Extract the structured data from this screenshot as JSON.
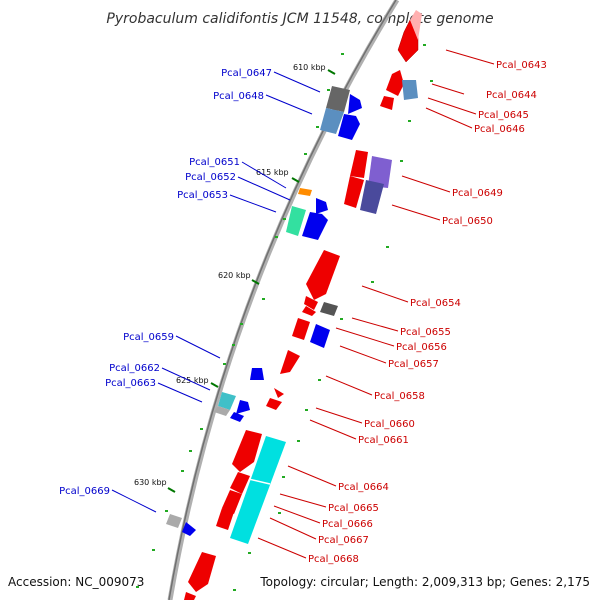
{
  "header": {
    "title": "Pyrobaculum calidifontis JCM 11548, complete genome"
  },
  "footer": {
    "accession": "Accession: NC_009073",
    "topology": "Topology: circular; Length: 2,009,313 bp; Genes: 2,175"
  },
  "colors": {
    "forward_label": "#0000cc",
    "reverse_label": "#cc0000",
    "backbone": "#888888",
    "tick": "#007700"
  },
  "kbp_ticks": [
    "610 kbp",
    "615 kbp",
    "620 kbp",
    "625 kbp",
    "630 kbp"
  ],
  "genes": {
    "forward": [
      {
        "id": "Pcal_0647",
        "color": "#555555"
      },
      {
        "id": "Pcal_0648",
        "color": "#5b8fc0"
      },
      {
        "id": "Pcal_0651",
        "color": "#ff8c00"
      },
      {
        "id": "Pcal_0652",
        "color": "#0000ee"
      },
      {
        "id": "Pcal_0653",
        "color": "#33e0a0"
      },
      {
        "id": "Pcal_0659",
        "color": "#0000ee"
      },
      {
        "id": "Pcal_0662",
        "color": "#40c0c8"
      },
      {
        "id": "Pcal_0663",
        "color": "#0000ee"
      },
      {
        "id": "Pcal_0669",
        "color": "#0000ee"
      }
    ],
    "reverse": [
      {
        "id": "Pcal_0643",
        "color": "#ee0000"
      },
      {
        "id": "Pcal_0644",
        "color": "#ee0000"
      },
      {
        "id": "Pcal_0645",
        "color": "#5b8fc0"
      },
      {
        "id": "Pcal_0646",
        "color": "#ee0000"
      },
      {
        "id": "Pcal_0649",
        "color": "#7f5fd0"
      },
      {
        "id": "Pcal_0650",
        "color": "#4a4a9c"
      },
      {
        "id": "Pcal_0654",
        "color": "#ee0000"
      },
      {
        "id": "Pcal_0655",
        "color": "#555555"
      },
      {
        "id": "Pcal_0656",
        "color": "#0000ee"
      },
      {
        "id": "Pcal_0657",
        "color": "#ee0000"
      },
      {
        "id": "Pcal_0658",
        "color": "#ee0000"
      },
      {
        "id": "Pcal_0660",
        "color": "#ee0000"
      },
      {
        "id": "Pcal_0661",
        "color": "#ee0000"
      },
      {
        "id": "Pcal_0664",
        "color": "#00e0e0"
      },
      {
        "id": "Pcal_0665",
        "color": "#ee0000"
      },
      {
        "id": "Pcal_0666",
        "color": "#ee0000"
      },
      {
        "id": "Pcal_0667",
        "color": "#ee0000"
      },
      {
        "id": "Pcal_0668",
        "color": "#ee0000"
      }
    ]
  }
}
